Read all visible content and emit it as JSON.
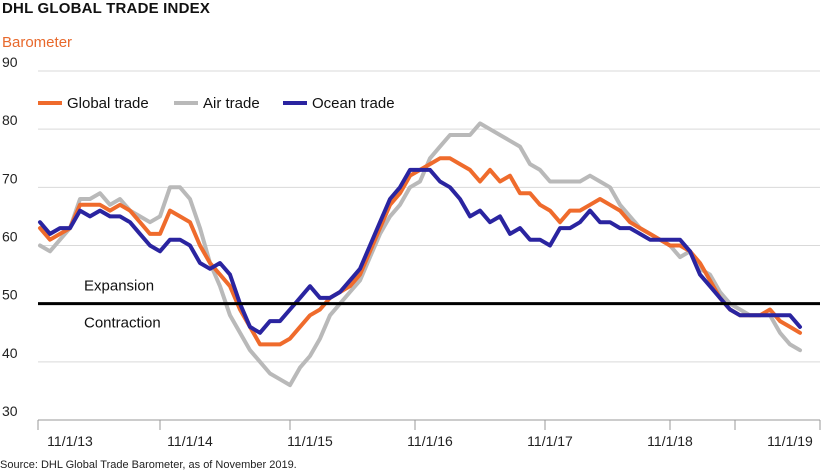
{
  "chart_data": {
    "type": "line",
    "title": "DHL GLOBAL TRADE INDEX",
    "subtitle": "Barometer",
    "source": "Source: DHL Global Trade Barometer, as of November 2019.",
    "ylim": [
      30,
      90
    ],
    "yticks": [
      "90",
      "80",
      "70",
      "60",
      "50",
      "40",
      "30"
    ],
    "xlim": [
      0,
      80
    ],
    "xticks": [
      {
        "label": "11/1/13",
        "x": 3
      },
      {
        "label": "11/1/14",
        "x": 15
      },
      {
        "label": "11/1/15",
        "x": 27
      },
      {
        "label": "11/1/16",
        "x": 39
      },
      {
        "label": "11/1/17",
        "x": 51
      },
      {
        "label": "11/1/18",
        "x": 63
      },
      {
        "label": "11/1/19",
        "x": 75
      }
    ],
    "reference_line": {
      "value": 50,
      "above_label": "Expansion",
      "below_label": "Contraction"
    },
    "legend": {
      "placement": "top-left"
    },
    "series": [
      {
        "name": "Global trade",
        "color": "#ef6b2c",
        "points": [
          [
            0,
            63
          ],
          [
            1,
            61
          ],
          [
            2,
            62
          ],
          [
            3,
            63
          ],
          [
            4,
            67
          ],
          [
            5,
            67
          ],
          [
            6,
            67
          ],
          [
            7,
            66
          ],
          [
            8,
            67
          ],
          [
            9,
            66
          ],
          [
            10,
            64
          ],
          [
            11,
            62
          ],
          [
            12,
            62
          ],
          [
            13,
            66
          ],
          [
            14,
            65
          ],
          [
            15,
            64
          ],
          [
            16,
            60
          ],
          [
            17,
            57
          ],
          [
            18,
            55
          ],
          [
            19,
            53
          ],
          [
            20,
            49
          ],
          [
            21,
            46
          ],
          [
            22,
            43
          ],
          [
            23,
            43
          ],
          [
            24,
            43
          ],
          [
            25,
            44
          ],
          [
            26,
            46
          ],
          [
            27,
            48
          ],
          [
            28,
            49
          ],
          [
            29,
            51
          ],
          [
            30,
            52
          ],
          [
            31,
            53
          ],
          [
            32,
            55
          ],
          [
            33,
            59
          ],
          [
            34,
            63
          ],
          [
            35,
            67
          ],
          [
            36,
            69
          ],
          [
            37,
            72
          ],
          [
            38,
            73
          ],
          [
            39,
            74
          ],
          [
            40,
            75
          ],
          [
            41,
            75
          ],
          [
            42,
            74
          ],
          [
            43,
            73
          ],
          [
            44,
            71
          ],
          [
            45,
            73
          ],
          [
            46,
            71
          ],
          [
            47,
            72
          ],
          [
            48,
            69
          ],
          [
            49,
            69
          ],
          [
            50,
            67
          ],
          [
            51,
            66
          ],
          [
            52,
            64
          ],
          [
            53,
            66
          ],
          [
            54,
            66
          ],
          [
            55,
            67
          ],
          [
            56,
            68
          ],
          [
            57,
            67
          ],
          [
            58,
            66
          ],
          [
            59,
            64
          ],
          [
            60,
            63
          ],
          [
            61,
            62
          ],
          [
            62,
            61
          ],
          [
            63,
            60
          ],
          [
            64,
            60
          ],
          [
            65,
            59
          ],
          [
            66,
            57
          ],
          [
            67,
            54
          ],
          [
            68,
            51
          ],
          [
            69,
            49
          ],
          [
            70,
            48
          ],
          [
            71,
            48
          ],
          [
            72,
            48
          ],
          [
            73,
            49
          ],
          [
            74,
            47
          ],
          [
            75,
            46
          ],
          [
            76,
            45
          ]
        ]
      },
      {
        "name": "Air trade",
        "color": "#b9b9b9",
        "points": [
          [
            0,
            60
          ],
          [
            1,
            59
          ],
          [
            2,
            61
          ],
          [
            3,
            63
          ],
          [
            4,
            68
          ],
          [
            5,
            68
          ],
          [
            6,
            69
          ],
          [
            7,
            67
          ],
          [
            8,
            68
          ],
          [
            9,
            66
          ],
          [
            10,
            65
          ],
          [
            11,
            64
          ],
          [
            12,
            65
          ],
          [
            13,
            70
          ],
          [
            14,
            70
          ],
          [
            15,
            68
          ],
          [
            16,
            63
          ],
          [
            17,
            57
          ],
          [
            18,
            53
          ],
          [
            19,
            48
          ],
          [
            20,
            45
          ],
          [
            21,
            42
          ],
          [
            22,
            40
          ],
          [
            23,
            38
          ],
          [
            24,
            37
          ],
          [
            25,
            36
          ],
          [
            26,
            39
          ],
          [
            27,
            41
          ],
          [
            28,
            44
          ],
          [
            29,
            48
          ],
          [
            30,
            50
          ],
          [
            31,
            52
          ],
          [
            32,
            54
          ],
          [
            33,
            58
          ],
          [
            34,
            62
          ],
          [
            35,
            65
          ],
          [
            36,
            67
          ],
          [
            37,
            70
          ],
          [
            38,
            71
          ],
          [
            39,
            75
          ],
          [
            40,
            77
          ],
          [
            41,
            79
          ],
          [
            42,
            79
          ],
          [
            43,
            79
          ],
          [
            44,
            81
          ],
          [
            45,
            80
          ],
          [
            46,
            79
          ],
          [
            47,
            78
          ],
          [
            48,
            77
          ],
          [
            49,
            74
          ],
          [
            50,
            73
          ],
          [
            51,
            71
          ],
          [
            52,
            71
          ],
          [
            53,
            71
          ],
          [
            54,
            71
          ],
          [
            55,
            72
          ],
          [
            56,
            71
          ],
          [
            57,
            70
          ],
          [
            58,
            67
          ],
          [
            59,
            65
          ],
          [
            60,
            63
          ],
          [
            61,
            62
          ],
          [
            62,
            61
          ],
          [
            63,
            60
          ],
          [
            64,
            58
          ],
          [
            65,
            59
          ],
          [
            66,
            56
          ],
          [
            67,
            55
          ],
          [
            68,
            52
          ],
          [
            69,
            50
          ],
          [
            70,
            49
          ],
          [
            71,
            48
          ],
          [
            72,
            48
          ],
          [
            73,
            48
          ],
          [
            74,
            45
          ],
          [
            75,
            43
          ],
          [
            76,
            42
          ]
        ]
      },
      {
        "name": "Ocean trade",
        "color": "#2a24a0",
        "points": [
          [
            0,
            64
          ],
          [
            1,
            62
          ],
          [
            2,
            63
          ],
          [
            3,
            63
          ],
          [
            4,
            66
          ],
          [
            5,
            65
          ],
          [
            6,
            66
          ],
          [
            7,
            65
          ],
          [
            8,
            65
          ],
          [
            9,
            64
          ],
          [
            10,
            62
          ],
          [
            11,
            60
          ],
          [
            12,
            59
          ],
          [
            13,
            61
          ],
          [
            14,
            61
          ],
          [
            15,
            60
          ],
          [
            16,
            57
          ],
          [
            17,
            56
          ],
          [
            18,
            57
          ],
          [
            19,
            55
          ],
          [
            20,
            50
          ],
          [
            21,
            46
          ],
          [
            22,
            45
          ],
          [
            23,
            47
          ],
          [
            24,
            47
          ],
          [
            25,
            49
          ],
          [
            26,
            51
          ],
          [
            27,
            53
          ],
          [
            28,
            51
          ],
          [
            29,
            51
          ],
          [
            30,
            52
          ],
          [
            31,
            54
          ],
          [
            32,
            56
          ],
          [
            33,
            60
          ],
          [
            34,
            64
          ],
          [
            35,
            68
          ],
          [
            36,
            70
          ],
          [
            37,
            73
          ],
          [
            38,
            73
          ],
          [
            39,
            73
          ],
          [
            40,
            71
          ],
          [
            41,
            70
          ],
          [
            42,
            68
          ],
          [
            43,
            65
          ],
          [
            44,
            66
          ],
          [
            45,
            64
          ],
          [
            46,
            65
          ],
          [
            47,
            62
          ],
          [
            48,
            63
          ],
          [
            49,
            61
          ],
          [
            50,
            61
          ],
          [
            51,
            60
          ],
          [
            52,
            63
          ],
          [
            53,
            63
          ],
          [
            54,
            64
          ],
          [
            55,
            66
          ],
          [
            56,
            64
          ],
          [
            57,
            64
          ],
          [
            58,
            63
          ],
          [
            59,
            63
          ],
          [
            60,
            62
          ],
          [
            61,
            61
          ],
          [
            62,
            61
          ],
          [
            63,
            61
          ],
          [
            64,
            61
          ],
          [
            65,
            59
          ],
          [
            66,
            55
          ],
          [
            67,
            53
          ],
          [
            68,
            51
          ],
          [
            69,
            49
          ],
          [
            70,
            48
          ],
          [
            71,
            48
          ],
          [
            72,
            48
          ],
          [
            73,
            48
          ],
          [
            74,
            48
          ],
          [
            75,
            48
          ],
          [
            76,
            46
          ]
        ]
      }
    ]
  }
}
